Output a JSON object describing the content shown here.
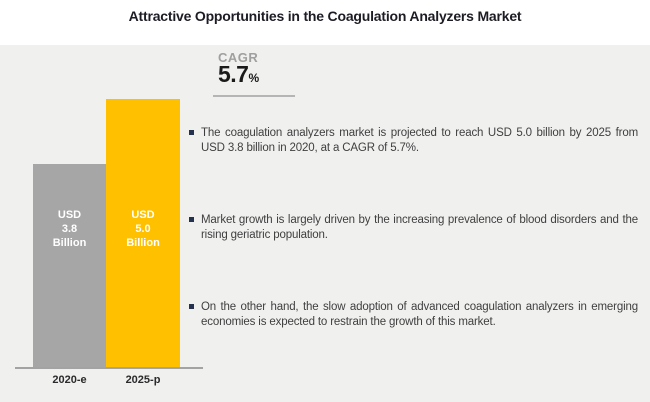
{
  "title": "Attractive Opportunities in the Coagulation Analyzers Market",
  "cagr": {
    "label": "CAGR",
    "value": "5.7",
    "unit": "%"
  },
  "bullets": [
    "The coagulation analyzers market is projected to reach USD 5.0 billion by 2025 from USD 3.8 billion in 2020, at a CAGR of 5.7%.",
    "Market growth is largely driven by the increasing prevalence of blood disorders and the rising geriatric population.",
    "On the other hand, the slow adoption of advanced coagulation analyzers in emerging economies is expected to restrain the growth of this market."
  ],
  "chart_data": {
    "type": "bar",
    "title": "Attractive Opportunities in the Coagulation Analyzers Market",
    "categories": [
      "2020-e",
      "2025-p"
    ],
    "values": [
      3.8,
      5.0
    ],
    "unit": "USD Billion",
    "bar_labels": [
      [
        "USD",
        "3.8",
        "Billion"
      ],
      [
        "USD",
        "5.0",
        "Billion"
      ]
    ],
    "bar_colors": [
      "#a6a6a6",
      "#ffc000"
    ],
    "ylim": [
      0,
      5.0
    ],
    "grid": false,
    "legend": "none",
    "cagr": "5.7%"
  },
  "colors": {
    "panel_background": "#f0f0ef",
    "bar_2020": "#a6a6a6",
    "bar_2025": "#ffc000",
    "title_text": "#1c1c24",
    "body_text": "#3f3f3f",
    "cagr_label": "#a0a0a0",
    "cagr_value": "#1a1a1a",
    "axis_line": "#a3a3a3",
    "bullet_marker": "#24324e"
  }
}
